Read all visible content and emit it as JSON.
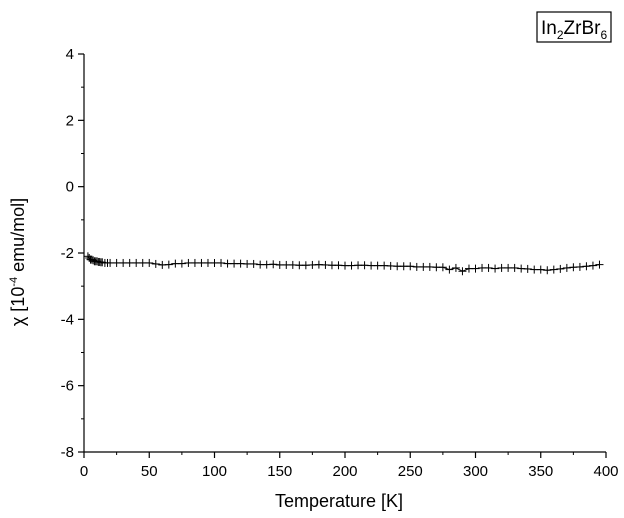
{
  "chart_data": {
    "type": "scatter",
    "title": "",
    "xlabel": "Temperature [K]",
    "ylabel": {
      "prefix": "χ [10",
      "exponent": "-4",
      "suffix": " emu/mol]"
    },
    "xlim": [
      0,
      400
    ],
    "ylim": [
      -8,
      4
    ],
    "xticks": [
      "0",
      "50",
      "100",
      "150",
      "200",
      "250",
      "300",
      "350",
      "400"
    ],
    "yticks": [
      "-8",
      "-6",
      "-4",
      "-2",
      "0",
      "2",
      "4"
    ],
    "legend": {
      "placement": "top-right",
      "base1": "In",
      "sub1": "2",
      "base2": "ZrBr",
      "sub2": "6"
    },
    "grid": false,
    "marker": "plus",
    "series": [
      {
        "name": "",
        "x": [
          3,
          4,
          5,
          6,
          7,
          8,
          9,
          10,
          11,
          12,
          13,
          14,
          16,
          18,
          20,
          25,
          30,
          35,
          40,
          45,
          50,
          55,
          60,
          65,
          70,
          75,
          80,
          85,
          90,
          95,
          100,
          105,
          110,
          115,
          120,
          125,
          130,
          135,
          140,
          145,
          150,
          155,
          160,
          165,
          170,
          175,
          180,
          185,
          190,
          195,
          200,
          205,
          210,
          215,
          220,
          225,
          230,
          235,
          240,
          245,
          250,
          255,
          260,
          265,
          270,
          275,
          280,
          285,
          290,
          295,
          300,
          305,
          310,
          315,
          320,
          325,
          330,
          335,
          340,
          345,
          350,
          355,
          360,
          365,
          370,
          375,
          380,
          385,
          390,
          395
        ],
        "y": [
          -2.1,
          -2.15,
          -2.2,
          -2.2,
          -2.22,
          -2.25,
          -2.25,
          -2.25,
          -2.27,
          -2.27,
          -2.28,
          -2.28,
          -2.3,
          -2.3,
          -2.3,
          -2.3,
          -2.3,
          -2.3,
          -2.3,
          -2.3,
          -2.3,
          -2.33,
          -2.36,
          -2.35,
          -2.32,
          -2.32,
          -2.3,
          -2.3,
          -2.3,
          -2.3,
          -2.3,
          -2.3,
          -2.32,
          -2.32,
          -2.32,
          -2.33,
          -2.33,
          -2.35,
          -2.35,
          -2.34,
          -2.36,
          -2.36,
          -2.36,
          -2.37,
          -2.37,
          -2.36,
          -2.35,
          -2.36,
          -2.37,
          -2.37,
          -2.38,
          -2.38,
          -2.37,
          -2.37,
          -2.38,
          -2.38,
          -2.38,
          -2.39,
          -2.4,
          -2.4,
          -2.4,
          -2.42,
          -2.42,
          -2.42,
          -2.43,
          -2.43,
          -2.5,
          -2.45,
          -2.55,
          -2.47,
          -2.47,
          -2.45,
          -2.45,
          -2.47,
          -2.45,
          -2.45,
          -2.45,
          -2.47,
          -2.48,
          -2.5,
          -2.5,
          -2.52,
          -2.5,
          -2.48,
          -2.45,
          -2.43,
          -2.42,
          -2.4,
          -2.38,
          -2.35
        ]
      }
    ]
  }
}
